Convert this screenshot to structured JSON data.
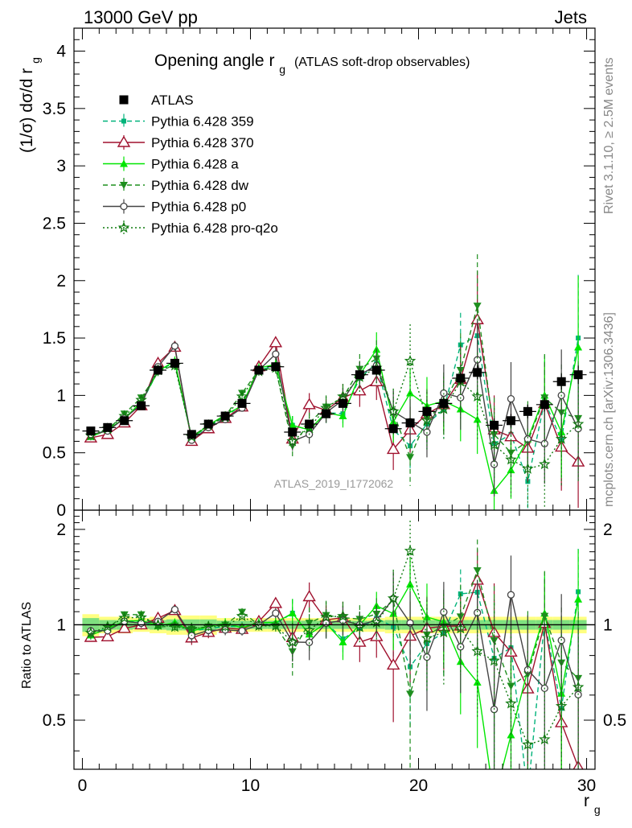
{
  "header": {
    "energy_label": "13000 GeV pp",
    "process_label": "Jets"
  },
  "side_labels": {
    "rivet": "Rivet 3.1.10, ≥ 2.5M events",
    "mcplots": "mcplots.cern.ch [arXiv:1306.3436]"
  },
  "colors": {
    "atlas": "#000000",
    "p359": "#00b37a",
    "p370": "#a0112e",
    "pa": "#00e600",
    "pdw": "#1f8f1f",
    "pp0": "#444444",
    "pq2o": "#0f7a0f",
    "band_outer": "#ffff80",
    "band_inner": "#7fe07f"
  },
  "chart_data": {
    "type": "scatter",
    "title_main": "Opening angle r",
    "title_sub": "g",
    "title_rest": "(ATLAS soft-drop observables)",
    "analysis_id": "ATLAS_2019_I1772062",
    "ylabel_main": "(1/σ) dσ/d r",
    "ylabel_sub": "g",
    "ratio_ylabel": "Ratio to ATLAS",
    "xlabel_main": "r",
    "xlabel_sub": "g",
    "xlim": [
      -0.5,
      30.5
    ],
    "ylim": [
      0,
      4.2
    ],
    "ratio_ylim": [
      0.35,
      2.3
    ],
    "main_yticks": [
      {
        "v": 0,
        "label": "0"
      },
      {
        "v": 0.5,
        "label": "0.5"
      },
      {
        "v": 1,
        "label": "1"
      },
      {
        "v": 1.5,
        "label": "1.5"
      },
      {
        "v": 2,
        "label": "2"
      },
      {
        "v": 2.5,
        "label": "2.5"
      },
      {
        "v": 3,
        "label": "3"
      },
      {
        "v": 3.5,
        "label": "3.5"
      },
      {
        "v": 4,
        "label": "4"
      }
    ],
    "ratio_yticks": [
      {
        "v": 0.5,
        "label": "0.5"
      },
      {
        "v": 1,
        "label": "1"
      },
      {
        "v": 2,
        "label": "2"
      }
    ],
    "xticks": [
      {
        "v": 0,
        "label": "0"
      },
      {
        "v": 10,
        "label": "10"
      },
      {
        "v": 20,
        "label": "20"
      },
      {
        "v": 30,
        "label": "30"
      }
    ],
    "x": [
      0.5,
      1.5,
      2.5,
      3.5,
      4.5,
      5.5,
      6.5,
      7.5,
      8.5,
      9.5,
      10.5,
      11.5,
      12.5,
      13.5,
      14.5,
      15.5,
      16.5,
      17.5,
      18.5,
      19.5,
      20.5,
      21.5,
      22.5,
      23.5,
      24.5,
      25.5,
      26.5,
      27.5,
      28.5,
      29.5
    ],
    "band_outer": [
      0.08,
      0.06,
      0.06,
      0.05,
      0.06,
      0.07,
      0.07,
      0.07,
      0.05,
      0.05,
      0.05,
      0.05,
      0.05,
      0.05,
      0.05,
      0.05,
      0.05,
      0.05,
      0.06,
      0.06,
      0.06,
      0.06,
      0.06,
      0.06,
      0.06,
      0.06,
      0.06,
      0.06,
      0.06,
      0.06
    ],
    "band_inner": [
      0.05,
      0.035,
      0.035,
      0.03,
      0.035,
      0.04,
      0.04,
      0.04,
      0.03,
      0.03,
      0.03,
      0.03,
      0.03,
      0.03,
      0.03,
      0.03,
      0.03,
      0.03,
      0.035,
      0.035,
      0.035,
      0.035,
      0.035,
      0.035,
      0.035,
      0.035,
      0.035,
      0.035,
      0.035,
      0.035
    ],
    "series": [
      {
        "name": "ATLAS",
        "key": "atlas",
        "marker": "square",
        "dash": "",
        "line": false,
        "y": [
          0.69,
          0.72,
          0.78,
          0.91,
          1.22,
          1.28,
          0.66,
          0.75,
          0.82,
          0.93,
          1.22,
          1.25,
          0.68,
          0.75,
          0.84,
          0.93,
          1.18,
          1.22,
          0.71,
          0.76,
          0.86,
          0.93,
          1.15,
          1.2,
          0.74,
          0.78,
          0.86,
          0.92,
          1.12,
          1.18
        ],
        "err": [
          0.02,
          0.02,
          0.02,
          0.02,
          0.03,
          0.03,
          0.02,
          0.02,
          0.02,
          0.02,
          0.03,
          0.03,
          0.03,
          0.03,
          0.03,
          0.03,
          0.04,
          0.04,
          0.04,
          0.04,
          0.05,
          0.05,
          0.05,
          0.06,
          0.06,
          0.06,
          0.06,
          0.06,
          0.07,
          0.08
        ]
      },
      {
        "name": "Pythia 6.428 359",
        "key": "p359",
        "marker": "smallsquare",
        "dash": "6,4",
        "line": true,
        "y": [
          0.65,
          0.7,
          0.8,
          0.93,
          1.21,
          1.29,
          0.63,
          0.73,
          0.81,
          0.92,
          1.22,
          1.26,
          0.74,
          0.7,
          0.85,
          0.84,
          1.15,
          1.28,
          0.7,
          0.56,
          0.75,
          0.88,
          1.44,
          1.52,
          0.58,
          0.66,
          0.25,
          0.95,
          0.61,
          1.5
        ],
        "err": [
          0.02,
          0.02,
          0.02,
          0.03,
          0.03,
          0.04,
          0.03,
          0.03,
          0.03,
          0.03,
          0.04,
          0.05,
          0.08,
          0.08,
          0.09,
          0.1,
          0.12,
          0.15,
          0.18,
          0.2,
          0.22,
          0.25,
          0.28,
          0.32,
          0.3,
          0.3,
          0.3,
          0.35,
          0.4,
          0.55
        ]
      },
      {
        "name": "Pythia 6.428 370",
        "key": "p370",
        "marker": "triangle-open",
        "dash": "",
        "line": true,
        "y": [
          0.63,
          0.66,
          0.76,
          0.91,
          1.28,
          1.42,
          0.6,
          0.71,
          0.8,
          0.9,
          1.25,
          1.46,
          0.62,
          0.92,
          0.87,
          0.98,
          1.04,
          1.12,
          0.53,
          0.7,
          0.84,
          0.92,
          1.14,
          1.66,
          0.7,
          0.64,
          0.54,
          0.93,
          0.55,
          0.42
        ],
        "err": [
          0.02,
          0.02,
          0.02,
          0.03,
          0.04,
          0.04,
          0.03,
          0.03,
          0.03,
          0.03,
          0.04,
          0.05,
          0.08,
          0.1,
          0.1,
          0.12,
          0.14,
          0.16,
          0.18,
          0.2,
          0.22,
          0.25,
          0.3,
          0.42,
          0.3,
          0.3,
          0.3,
          0.35,
          0.38,
          0.4
        ]
      },
      {
        "name": "Pythia 6.428 a",
        "key": "pa",
        "marker": "triangle-up",
        "dash": "",
        "line": true,
        "y": [
          0.64,
          0.7,
          0.8,
          0.94,
          1.21,
          1.3,
          0.63,
          0.74,
          0.83,
          0.91,
          1.24,
          1.27,
          0.74,
          0.7,
          0.85,
          0.82,
          1.18,
          1.4,
          0.77,
          1.02,
          0.91,
          0.95,
          0.88,
          0.79,
          0.17,
          0.35,
          0.62,
          1.0,
          0.68,
          1.42
        ],
        "err": [
          0.02,
          0.02,
          0.02,
          0.03,
          0.03,
          0.04,
          0.03,
          0.03,
          0.03,
          0.03,
          0.04,
          0.05,
          0.08,
          0.08,
          0.09,
          0.1,
          0.12,
          0.15,
          0.18,
          0.22,
          0.25,
          0.25,
          0.28,
          0.3,
          0.25,
          0.25,
          0.3,
          0.35,
          0.4,
          0.62
        ]
      },
      {
        "name": "Pythia 6.428 dw",
        "key": "pdw",
        "marker": "triangle-down",
        "dash": "6,4",
        "line": true,
        "y": [
          0.64,
          0.7,
          0.84,
          0.98,
          1.2,
          1.27,
          0.64,
          0.74,
          0.82,
          1.02,
          1.22,
          1.24,
          0.56,
          0.76,
          0.9,
          0.98,
          1.23,
          1.32,
          0.85,
          0.46,
          0.8,
          0.92,
          1.22,
          1.78,
          0.66,
          0.5,
          0.6,
          0.98,
          0.85,
          0.8
        ],
        "err": [
          0.02,
          0.02,
          0.02,
          0.03,
          0.03,
          0.04,
          0.03,
          0.03,
          0.03,
          0.03,
          0.04,
          0.05,
          0.09,
          0.09,
          0.1,
          0.11,
          0.13,
          0.16,
          0.2,
          0.25,
          0.25,
          0.28,
          0.32,
          0.45,
          0.32,
          0.32,
          0.35,
          0.38,
          0.42,
          0.5
        ]
      },
      {
        "name": "Pythia 6.428 p0",
        "key": "pp0",
        "marker": "circle-open",
        "dash": "",
        "line": true,
        "y": [
          0.66,
          0.69,
          0.8,
          0.92,
          1.25,
          1.43,
          0.61,
          0.72,
          0.79,
          0.89,
          1.22,
          1.36,
          0.6,
          0.66,
          0.85,
          0.96,
          1.18,
          1.26,
          0.86,
          0.77,
          0.68,
          1.02,
          0.98,
          1.31,
          0.4,
          0.97,
          0.62,
          0.58,
          1.0,
          0.71
        ],
        "err": [
          0.02,
          0.02,
          0.02,
          0.03,
          0.03,
          0.04,
          0.03,
          0.03,
          0.03,
          0.03,
          0.04,
          0.05,
          0.08,
          0.08,
          0.09,
          0.1,
          0.12,
          0.15,
          0.18,
          0.2,
          0.22,
          0.25,
          0.28,
          0.35,
          0.28,
          0.32,
          0.3,
          0.35,
          0.4,
          0.45
        ]
      },
      {
        "name": "Pythia 6.428 pro-q2o",
        "key": "pq2o",
        "marker": "star",
        "dash": "2,3",
        "line": true,
        "y": [
          0.65,
          0.71,
          0.82,
          0.96,
          1.22,
          1.26,
          0.64,
          0.74,
          0.81,
          0.99,
          1.21,
          1.24,
          0.6,
          0.72,
          0.89,
          0.99,
          1.16,
          1.24,
          0.86,
          1.3,
          0.78,
          0.88,
          1.12,
          0.99,
          0.57,
          0.44,
          0.36,
          0.4,
          0.62,
          0.75
        ],
        "err": [
          0.02,
          0.02,
          0.02,
          0.03,
          0.03,
          0.04,
          0.03,
          0.03,
          0.03,
          0.03,
          0.04,
          0.05,
          0.09,
          0.09,
          0.1,
          0.11,
          0.13,
          0.16,
          0.2,
          0.32,
          0.25,
          0.28,
          0.32,
          0.38,
          0.32,
          0.32,
          0.35,
          0.38,
          0.42,
          0.5
        ]
      }
    ]
  }
}
